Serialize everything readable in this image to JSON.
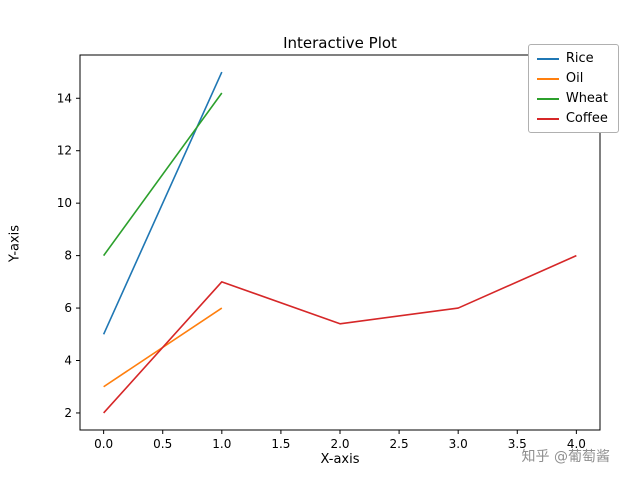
{
  "figure": {
    "background": "#ffffff",
    "watermark": "知乎 @葡萄酱"
  },
  "chart_data": {
    "type": "line",
    "title": "Interactive Plot",
    "xlabel": "X-axis",
    "ylabel": "Y-axis",
    "xlim": [
      -0.2,
      4.2
    ],
    "ylim": [
      1.35,
      15.65
    ],
    "grid": false,
    "legend_position": "upper right",
    "xticks": {
      "values": [
        0.0,
        0.5,
        1.0,
        1.5,
        2.0,
        2.5,
        3.0,
        3.5,
        4.0
      ],
      "labels": [
        "0.0",
        "0.5",
        "1.0",
        "1.5",
        "2.0",
        "2.5",
        "3.0",
        "3.5",
        "4.0"
      ]
    },
    "yticks": {
      "values": [
        2,
        4,
        6,
        8,
        10,
        12,
        14
      ],
      "labels": [
        "2",
        "4",
        "6",
        "8",
        "10",
        "12",
        "14"
      ]
    },
    "series": [
      {
        "name": "Rice",
        "color": "#1f77b4",
        "x": [
          0,
          1
        ],
        "y": [
          5,
          15
        ]
      },
      {
        "name": "Oil",
        "color": "#ff7f0e",
        "x": [
          0,
          1
        ],
        "y": [
          3,
          6
        ]
      },
      {
        "name": "Wheat",
        "color": "#2ca02c",
        "x": [
          0,
          1
        ],
        "y": [
          8,
          14.2
        ]
      },
      {
        "name": "Coffee",
        "color": "#d62728",
        "x": [
          0,
          1,
          2,
          3,
          4
        ],
        "y": [
          2,
          7,
          5.4,
          6,
          8
        ]
      }
    ]
  }
}
